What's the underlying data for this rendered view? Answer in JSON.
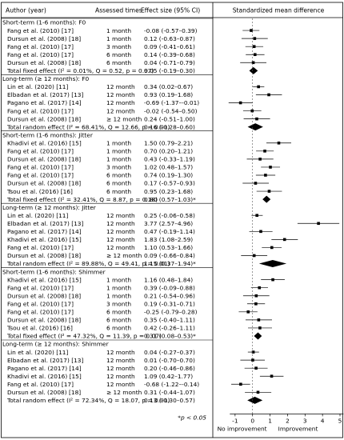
{
  "chart_data": {
    "type": "forest",
    "header": {
      "author": "Author (year)",
      "times": "Assessed times",
      "effect": "Effect size (95% CI)",
      "smd": "Standardized mean difference"
    },
    "xlim": [
      -2,
      5
    ],
    "ticks": [
      "-1",
      "0",
      "1",
      "2",
      "3",
      "4",
      "5"
    ],
    "tick_values": [
      -1,
      0,
      1,
      2,
      3,
      4,
      5
    ],
    "xlabel_left": "No improvement",
    "xlabel_right": "Improvement",
    "footnote": "*p < 0.05",
    "rows": [
      {
        "kind": "section",
        "label": "Short-term (1-6 months): F0"
      },
      {
        "kind": "study",
        "author": "Fang et al. (2010) [17]",
        "time": "1 month",
        "ci": "-0.08 (-0.57–0.39)",
        "es": -0.08,
        "lo": -0.57,
        "hi": 0.39
      },
      {
        "kind": "study",
        "author": "Dursun et al. (2008) [18]",
        "time": "1 month",
        "ci": "0.12 (-0.63–0.87)",
        "es": 0.12,
        "lo": -0.63,
        "hi": 0.87
      },
      {
        "kind": "study",
        "author": "Fang et al. (2010) [17]",
        "time": "3 month",
        "ci": "0.09 (-0.41–0.61)",
        "es": 0.09,
        "lo": -0.41,
        "hi": 0.61
      },
      {
        "kind": "study",
        "author": "Fang et al. (2010) [17]",
        "time": "6 month",
        "ci": "0.14 (-0.39–0.68)",
        "es": 0.14,
        "lo": -0.39,
        "hi": 0.68
      },
      {
        "kind": "study",
        "author": "Dursun et al. (2008) [18]",
        "time": "6 month",
        "ci": "0.04 (-0.71–0.79)",
        "es": 0.04,
        "lo": -0.71,
        "hi": 0.79
      },
      {
        "kind": "total",
        "label": "Total fixed effect (I² = 0.01%, Q = 0.52, p = 0.97)",
        "ci": "0.05 (-0.19–0.30)",
        "es": 0.05,
        "lo": -0.19,
        "hi": 0.3
      },
      {
        "kind": "section",
        "label": "Long-term (≥ 12 months): F0"
      },
      {
        "kind": "study",
        "author": "Lin et al. (2020) [11]",
        "time": "12 month",
        "ci": "0.34 (0.02–0.67)",
        "es": 0.34,
        "lo": 0.02,
        "hi": 0.67
      },
      {
        "kind": "study",
        "author": "Elbadan et al. (2017) [13]",
        "time": "12 month",
        "ci": "0.93 (0.19–1.68)",
        "es": 0.93,
        "lo": 0.19,
        "hi": 1.68
      },
      {
        "kind": "study",
        "author": "Pagano et al. (2017) [14]",
        "time": "12 month",
        "ci": "-0.69 (-1.37–-0.01)",
        "es": -0.69,
        "lo": -1.37,
        "hi": -0.01
      },
      {
        "kind": "study",
        "author": "Fang et al. (2010) [17]",
        "time": "12 month",
        "ci": "-0.02 (-0.54–0.50)",
        "es": -0.02,
        "lo": -0.54,
        "hi": 0.5
      },
      {
        "kind": "study",
        "author": "Dursun et al. (2008) [18]",
        "time": "≥ 12 month",
        "ci": "0.24 (-0.51–1.00)",
        "es": 0.24,
        "lo": -0.51,
        "hi": 1.0
      },
      {
        "kind": "total",
        "label": "Total random effect (I² = 68.41%, Q = 12.66, p = 0.01)",
        "ci": "0.16 (-0.28–0.60)",
        "es": 0.16,
        "lo": -0.28,
        "hi": 0.6
      },
      {
        "kind": "section",
        "label": "Short-term (1-6 months): Jitter"
      },
      {
        "kind": "study",
        "author": "Khadivi et al. (2016) [15]",
        "time": "1 month",
        "ci": "1.50 (0.79–2.21)",
        "es": 1.5,
        "lo": 0.79,
        "hi": 2.21
      },
      {
        "kind": "study",
        "author": "Fang et al. (2010) [17]",
        "time": "1 month",
        "ci": "0.70 (0.20–1.21)",
        "es": 0.7,
        "lo": 0.2,
        "hi": 1.21
      },
      {
        "kind": "study",
        "author": "Dursun et al. (2008) [18]",
        "time": "1 month",
        "ci": "0.43 (-0.33–1.19)",
        "es": 0.43,
        "lo": -0.33,
        "hi": 1.19
      },
      {
        "kind": "study",
        "author": "Fang et al. (2010) [17]",
        "time": "3 month",
        "ci": "1.02 (0.48–1.57)",
        "es": 1.02,
        "lo": 0.48,
        "hi": 1.57
      },
      {
        "kind": "study",
        "author": "Fang et al. (2010) [17]",
        "time": "6 month",
        "ci": "0.74 (0.19–1.30)",
        "es": 0.74,
        "lo": 0.19,
        "hi": 1.3
      },
      {
        "kind": "study",
        "author": "Dursun et al. (2008) [18]",
        "time": "6 month",
        "ci": "0.17 (-0.57–0.93)",
        "es": 0.17,
        "lo": -0.57,
        "hi": 0.93
      },
      {
        "kind": "study",
        "author": "Tsou et al. (2016) [16]",
        "time": "6 month",
        "ci": "0.95 (0.23–1.68)",
        "es": 0.95,
        "lo": 0.23,
        "hi": 1.68
      },
      {
        "kind": "total",
        "label": "Total fixed effect (I² = 32.41%, Q = 8.87, p = 0.18)",
        "ci": "0.80 (0.57–1.03)*",
        "es": 0.8,
        "lo": 0.57,
        "hi": 1.03
      },
      {
        "kind": "section",
        "label": "Long-term (≥ 12 months): Jitter"
      },
      {
        "kind": "study",
        "author": "Lin et al. (2020) [11]",
        "time": "12 month",
        "ci": "0.25 (-0.06–0.58)",
        "es": 0.25,
        "lo": -0.06,
        "hi": 0.58
      },
      {
        "kind": "study",
        "author": "Elbadan et al. (2017) [13]",
        "time": "12 month",
        "ci": "3.77 (2.57–4.96)",
        "es": 3.77,
        "lo": 2.57,
        "hi": 4.96
      },
      {
        "kind": "study",
        "author": "Pagano et al. (2017) [14]",
        "time": "12 month",
        "ci": "0.47 (-0.19–1.14)",
        "es": 0.47,
        "lo": -0.19,
        "hi": 1.14
      },
      {
        "kind": "study",
        "author": "Khadivi et al. (2016) [15]",
        "time": "12 month",
        "ci": "1.83 (1.08–2.59)",
        "es": 1.83,
        "lo": 1.08,
        "hi": 2.59
      },
      {
        "kind": "study",
        "author": "Fang et al. (2010) [17]",
        "time": "12 month",
        "ci": "1.10 (0.53–1.66)",
        "es": 1.1,
        "lo": 0.53,
        "hi": 1.66
      },
      {
        "kind": "study",
        "author": "Dursun et al. (2008) [18]",
        "time": "≥ 12 month",
        "ci": "0.09 (-0.66–0.84)",
        "es": 0.09,
        "lo": -0.66,
        "hi": 0.84
      },
      {
        "kind": "total",
        "label": "Total random effect (I² = 89.88%, Q = 49.41, p = 0.01)",
        "ci": "1.15 (0.37–1.94)*",
        "es": 1.15,
        "lo": 0.37,
        "hi": 1.94
      },
      {
        "kind": "section",
        "label": "Short-term (1-6 months): Shimmer"
      },
      {
        "kind": "study",
        "author": "Khadivi et al. (2016) [15]",
        "time": "1 month",
        "ci": "1.16 (0.48–1.84)",
        "es": 1.16,
        "lo": 0.48,
        "hi": 1.84
      },
      {
        "kind": "study",
        "author": "Fang et al. (2010) [17]",
        "time": "1 month",
        "ci": "0.39 (-0.09–0.88)",
        "es": 0.39,
        "lo": -0.09,
        "hi": 0.88
      },
      {
        "kind": "study",
        "author": "Dursun et al. (2008) [18]",
        "time": "1 month",
        "ci": "0.21 (-0.54–0.96)",
        "es": 0.21,
        "lo": -0.54,
        "hi": 0.96
      },
      {
        "kind": "study",
        "author": "Fang et al. (2010) [17]",
        "time": "3 month",
        "ci": "0.19 (-0.31–0.71)",
        "es": 0.19,
        "lo": -0.31,
        "hi": 0.71
      },
      {
        "kind": "study",
        "author": "Fang et al. (2010) [17]",
        "time": "6 month",
        "ci": "-0.25 (-0.79–0.28)",
        "es": -0.25,
        "lo": -0.79,
        "hi": 0.28
      },
      {
        "kind": "study",
        "author": "Dursun et al. (2008) [18]",
        "time": "6 month",
        "ci": "0.35 (-0.40–1.11)",
        "es": 0.35,
        "lo": -0.4,
        "hi": 1.11
      },
      {
        "kind": "study",
        "author": "Tsou et al. (2016) [16]",
        "time": "6 month",
        "ci": "0.42 (-0.26–1.11)",
        "es": 0.42,
        "lo": -0.26,
        "hi": 1.11
      },
      {
        "kind": "total",
        "label": "Total fixed effect (I² = 47.32%, Q = 11.39, p = 0.07)",
        "ci": "0.31 (0.08–0.53)*",
        "es": 0.31,
        "lo": 0.08,
        "hi": 0.53
      },
      {
        "kind": "section",
        "label": "Long-term (≥ 12 months): Shimmer"
      },
      {
        "kind": "study",
        "author": "Lin et al. (2020) [11]",
        "time": "12 month",
        "ci": "0.04 (-0.27–0.37)",
        "es": 0.04,
        "lo": -0.27,
        "hi": 0.37
      },
      {
        "kind": "study",
        "author": "Elbadan et al. (2017) [13]",
        "time": "12 month",
        "ci": "0.01 (-0.70–0.70)",
        "es": 0.01,
        "lo": -0.7,
        "hi": 0.7
      },
      {
        "kind": "study",
        "author": "Pagano et al. (2017) [14]",
        "time": "12 month",
        "ci": "0.20 (-0.46–0.86)",
        "es": 0.2,
        "lo": -0.46,
        "hi": 0.86
      },
      {
        "kind": "study",
        "author": "Khadivi et al. (2016) [15]",
        "time": "12 month",
        "ci": "1.09 (0.42–1.77)",
        "es": 1.09,
        "lo": 0.42,
        "hi": 1.77
      },
      {
        "kind": "study",
        "author": "Fang et al. (2010) [17]",
        "time": "12 month",
        "ci": "-0.68 (-1.22–-0.14)",
        "es": -0.68,
        "lo": -1.22,
        "hi": -0.14
      },
      {
        "kind": "study",
        "author": "Dursun et al. (2008) [18]",
        "time": "≥ 12 month",
        "ci": "0.31 (-0.44–1.07)",
        "es": 0.31,
        "lo": -0.44,
        "hi": 1.07
      },
      {
        "kind": "total",
        "label": "Total random effect (I² = 72.34%, Q = 18.07, p = 0.01)",
        "ci": "0.13 (-0.30–0.57)",
        "es": 0.13,
        "lo": -0.3,
        "hi": 0.57
      }
    ]
  }
}
